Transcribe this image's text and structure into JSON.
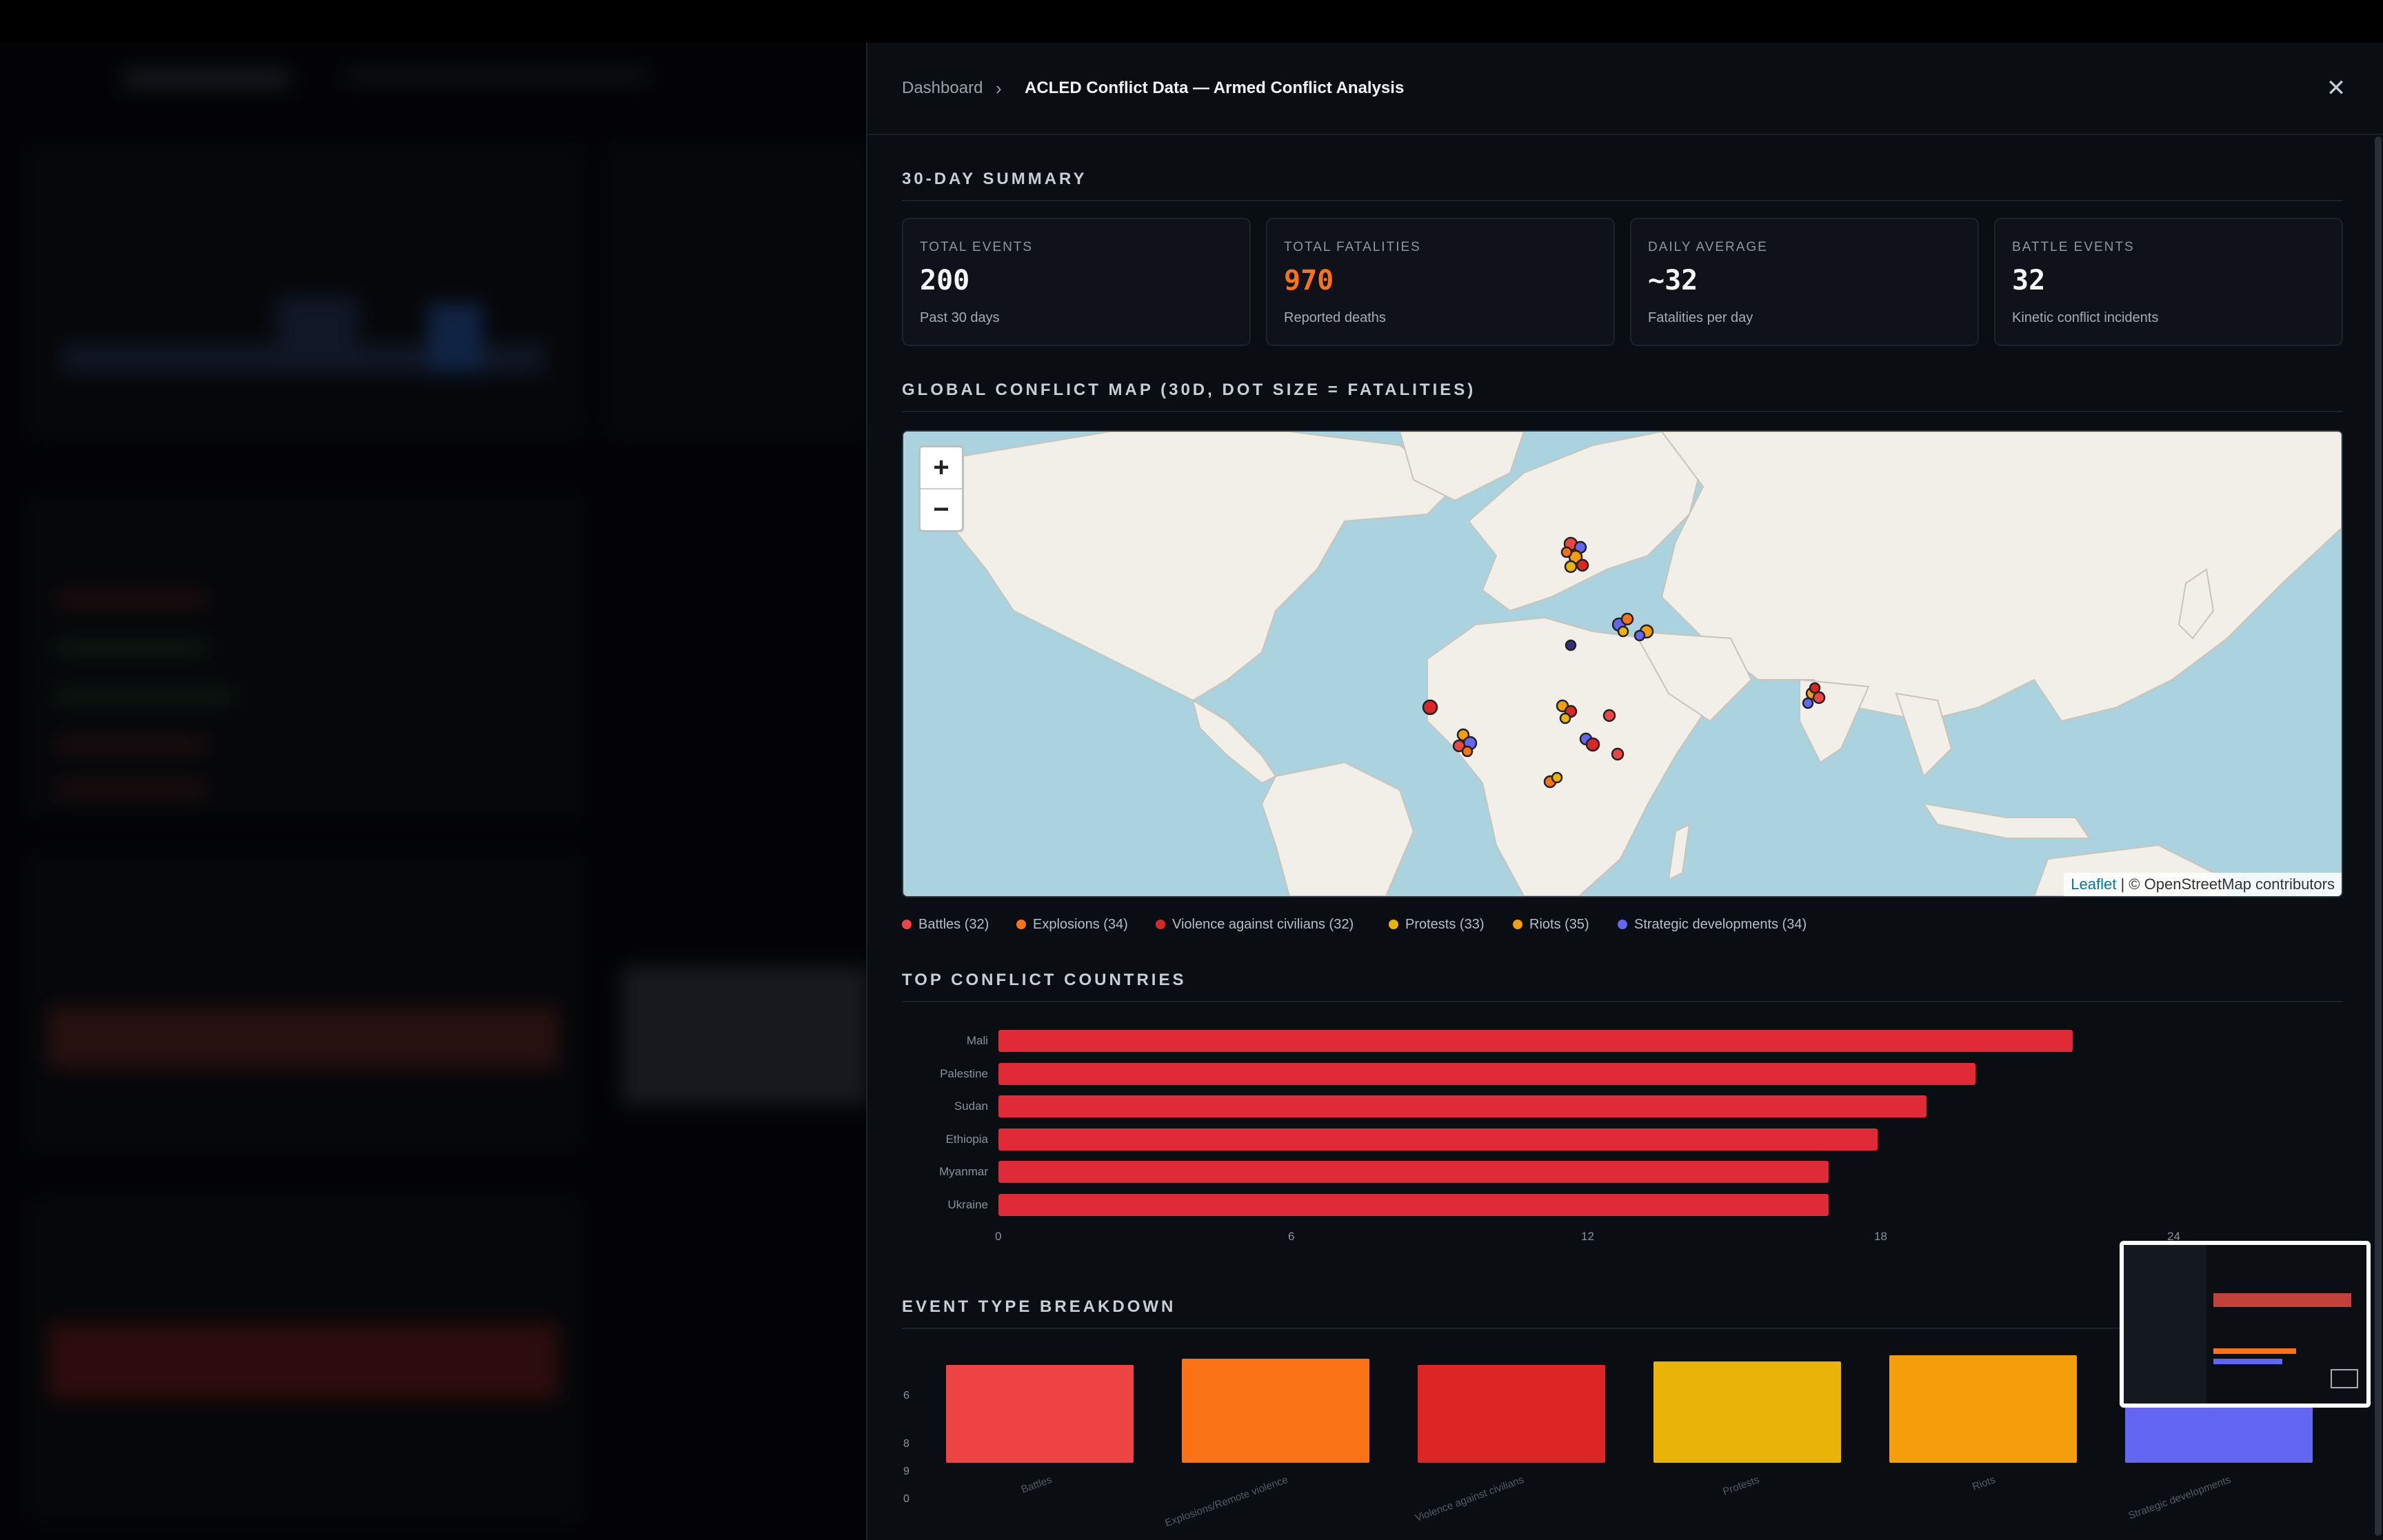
{
  "breadcrumb": {
    "root": "Dashboard",
    "separator": "›",
    "current": "ACLED Conflict Data — Armed Conflict Analysis"
  },
  "close_icon": "close-icon",
  "summary": {
    "title": "30-DAY SUMMARY",
    "cards": [
      {
        "label": "TOTAL EVENTS",
        "value": "200",
        "sub": "Past 30 days",
        "color": "#f4f6f8"
      },
      {
        "label": "TOTAL FATALITIES",
        "value": "970",
        "sub": "Reported deaths",
        "color": "#f97316"
      },
      {
        "label": "DAILY AVERAGE",
        "value": "~32",
        "sub": "Fatalities per day",
        "color": "#f4f6f8"
      },
      {
        "label": "BATTLE EVENTS",
        "value": "32",
        "sub": "Kinetic conflict incidents",
        "color": "#f4f6f8"
      }
    ]
  },
  "map": {
    "title": "GLOBAL CONFLICT MAP (30D, DOT SIZE = FATALITIES)",
    "zoom_in": "+",
    "zoom_out": "−",
    "attribution_leaflet": "Leaflet",
    "attribution_rest": " | © OpenStreetMap contributors",
    "colors": {
      "land": "#f2efe9",
      "water": "#aad3df"
    }
  },
  "legend": [
    {
      "label": "Battles (32)",
      "color": "#ef4444"
    },
    {
      "label": "Explosions (34)",
      "color": "#f97316"
    },
    {
      "label": "Violence against civilians (32)",
      "color": "#dc2626"
    },
    {
      "label": "Protests (33)",
      "color": "#eab308"
    },
    {
      "label": "Riots (35)",
      "color": "#f59e0b"
    },
    {
      "label": "Strategic developments (34)",
      "color": "#6366f1"
    }
  ],
  "countries": {
    "title": "TOP CONFLICT COUNTRIES",
    "chart_data": {
      "type": "bar",
      "orientation": "horizontal",
      "categories": [
        "Mali",
        "Palestine",
        "Sudan",
        "Ethiopia",
        "Myanmar",
        "Ukraine"
      ],
      "values": [
        22,
        20,
        19,
        18,
        17,
        17
      ],
      "xticks": [
        "0",
        "6",
        "12",
        "18",
        "24"
      ],
      "xlim": [
        0,
        24
      ],
      "color": "#e02a37"
    }
  },
  "event_types": {
    "title": "EVENT TYPE BREAKDOWN",
    "chart_data": {
      "type": "bar",
      "categories": [
        "Battles",
        "Explosions/Remote violence",
        "Violence against civilians",
        "Protests",
        "Riots",
        "Strategic developments"
      ],
      "values": [
        32,
        34,
        32,
        33,
        35,
        34
      ],
      "colors": [
        "#ef4444",
        "#f97316",
        "#dc2626",
        "#eab308",
        "#f59e0b",
        "#6366f1"
      ],
      "yticks": [
        "6",
        "8",
        "9",
        "0"
      ]
    }
  }
}
